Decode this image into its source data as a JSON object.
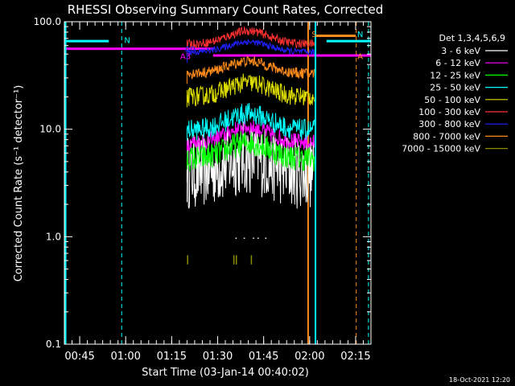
{
  "chart_data": {
    "type": "line",
    "title": "RHESSI Observing Summary Count Rates, Corrected",
    "xlabel": "Start Time (03-Jan-14 00:40:02)",
    "ylabel": "Corrected Count Rate (s⁻¹ detector⁻¹)",
    "y_scale": "log",
    "ylim": [
      0.1,
      100
    ],
    "xlim_minutes_after_0040": [
      0,
      100
    ],
    "yticks": [
      {
        "v": 0.1,
        "label": "0.1"
      },
      {
        "v": 1,
        "label": "1.0"
      },
      {
        "v": 10,
        "label": "10.0"
      },
      {
        "v": 100,
        "label": "100.0"
      }
    ],
    "xticks": [
      {
        "m": 5,
        "label": "00:45"
      },
      {
        "m": 20,
        "label": "01:00"
      },
      {
        "m": 35,
        "label": "01:15"
      },
      {
        "m": 50,
        "label": "01:30"
      },
      {
        "m": 65,
        "label": "01:45"
      },
      {
        "m": 80,
        "label": "02:00"
      },
      {
        "m": 95,
        "label": "02:15"
      }
    ],
    "legend": {
      "position": "right",
      "header": "Det 1,3,4,5,6,9",
      "entries": [
        {
          "label": "3 - 6 keV",
          "color": "#ffffff"
        },
        {
          "label": "6 - 12 keV",
          "color": "#ff00ff"
        },
        {
          "label": "12 - 25 keV",
          "color": "#00ff00"
        },
        {
          "label": "25 - 50 keV",
          "color": "#00ffff"
        },
        {
          "label": "50 - 100 keV",
          "color": "#dddd00"
        },
        {
          "label": "100 - 300 keV",
          "color": "#ff3030"
        },
        {
          "label": "300 - 800 keV",
          "color": "#2020ff"
        },
        {
          "label": "800 - 7000 keV",
          "color": "#ff8c1a"
        },
        {
          "label": "7000 - 15000 keV",
          "color": "#8c8c00"
        }
      ]
    },
    "series": [
      {
        "name": "3 - 6 keV",
        "color": "#000000",
        "base": 4.0,
        "peak": 5.5,
        "noise": 0.35
      },
      {
        "name": "6 - 12 keV",
        "color": "#ff00ff",
        "base": 7.5,
        "peak": 10.5,
        "noise": 0.08
      },
      {
        "name": "12 - 25 keV",
        "color": "#00ff00",
        "base": 5.3,
        "peak": 7.5,
        "noise": 0.12
      },
      {
        "name": "25 - 50 keV",
        "color": "#00ffff",
        "base": 9.8,
        "peak": 14.0,
        "noise": 0.1
      },
      {
        "name": "50 - 100 keV",
        "color": "#dddd00",
        "base": 20.0,
        "peak": 27.0,
        "noise": 0.09
      },
      {
        "name": "100 - 300 keV",
        "color": "#ff3030",
        "base": 62.0,
        "peak": 82.0,
        "noise": 0.04
      },
      {
        "name": "300 - 800 keV",
        "color": "#2020ff",
        "base": 52.0,
        "peak": 65.0,
        "noise": 0.03
      },
      {
        "name": "800 - 7000 keV",
        "color": "#ff8c1a",
        "base": 33.0,
        "peak": 43.0,
        "noise": 0.05
      },
      {
        "name": "7000 - 15000 keV",
        "color": "#8c8c00",
        "base": 0.6,
        "peak": 0.65,
        "noise": 0.05
      }
    ],
    "data_window_minutes": [
      40,
      81.5
    ],
    "peak_minute": 60,
    "annotations": [
      {
        "text": "N",
        "m": 20.5,
        "y": 68,
        "color": "#00ffff"
      },
      {
        "text": "A3",
        "m": 39.5,
        "y": 48,
        "color": "#ff00ff"
      },
      {
        "text": "A0",
        "m": 41.0,
        "y": 56,
        "color": "#2020ff"
      },
      {
        "text": "S",
        "m": 81.5,
        "y": 77,
        "color": "#ff8c1a"
      },
      {
        "text": "N",
        "m": 96.5,
        "y": 77,
        "color": "#00ffff"
      },
      {
        "text": "A",
        "m": 96.5,
        "y": 48,
        "color": "#ff8c1a"
      }
    ],
    "footer_date": "18-Oct-2021 12:20"
  }
}
